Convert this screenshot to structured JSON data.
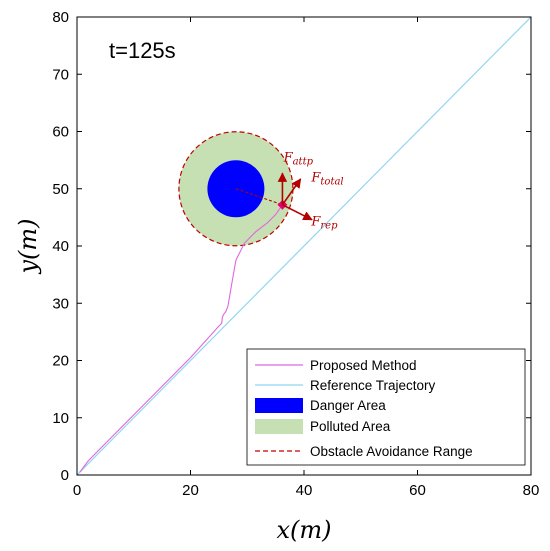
{
  "chart_data": {
    "type": "line",
    "time_label": "t=125s",
    "xlabel": "x(m)",
    "ylabel": "y(m)",
    "xlim": [
      0,
      80
    ],
    "ylim": [
      0,
      80
    ],
    "xticks": [
      0,
      20,
      40,
      60,
      80
    ],
    "yticks": [
      0,
      10,
      20,
      30,
      40,
      50,
      60,
      70,
      80
    ],
    "grid": false,
    "legend_placement": "bottom-right",
    "obstacle": {
      "center": [
        28,
        50
      ],
      "danger_radius": 5,
      "polluted_radius": 10,
      "avoidance_radius": 10
    },
    "series": [
      {
        "name": "Proposed Method",
        "color": "#e066e0",
        "style": "solid",
        "x": [
          0.5,
          2,
          5,
          10,
          15,
          20,
          25,
          25.5,
          25.6,
          25.8,
          26.2,
          26.6,
          27.2,
          28,
          29.5,
          31.5,
          33.5,
          35,
          36.2
        ],
        "y": [
          0.5,
          2.5,
          5.5,
          10.5,
          15.5,
          20.5,
          26,
          26.5,
          27.5,
          28,
          28.5,
          29.5,
          33,
          37.5,
          40.5,
          42.5,
          44,
          45.5,
          47.2
        ]
      },
      {
        "name": "Reference Trajectory",
        "color": "#8fd6f0",
        "style": "solid",
        "x": [
          0,
          80
        ],
        "y": [
          0,
          80
        ]
      },
      {
        "name": "Danger Area",
        "color": "#0000ff",
        "style": "fill"
      },
      {
        "name": "Polluted Area",
        "color": "#c6e0b4",
        "style": "fill"
      },
      {
        "name": "Obstacle Avoidance Range",
        "color": "#c00000",
        "style": "dashed"
      }
    ],
    "vehicle_position": [
      36.2,
      47.2
    ],
    "forces": [
      {
        "symbol": "F",
        "subscript": "attp",
        "dx": 0,
        "dy": 5.5,
        "label_at": [
          36.4,
          54.8
        ]
      },
      {
        "symbol": "F",
        "subscript": "total",
        "dx": 3.2,
        "dy": 4.5,
        "label_at": [
          41.3,
          51.3
        ]
      },
      {
        "symbol": "F",
        "subscript": "rep",
        "dx": 5.2,
        "dy": -2.6,
        "label_at": [
          41.3,
          43.6
        ]
      }
    ],
    "colors": {
      "force": "#b30000",
      "axis": "#000000",
      "vehicle": "#e60073"
    }
  }
}
